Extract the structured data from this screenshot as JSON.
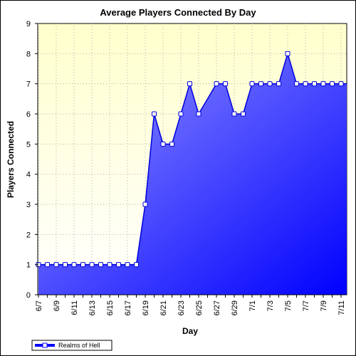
{
  "chart_data": {
    "type": "area",
    "title": "Average Players Connected By Day",
    "xlabel": "Day",
    "ylabel": "Players Connected",
    "ylim": [
      0,
      9
    ],
    "yticks": [
      0,
      1,
      2,
      3,
      4,
      5,
      6,
      7,
      8,
      9
    ],
    "grid": true,
    "legend_position": "bottom-left",
    "tick_labels_every": 2,
    "categories": [
      "6/7",
      "6/8",
      "6/9",
      "6/10",
      "6/11",
      "6/12",
      "6/13",
      "6/14",
      "6/15",
      "6/16",
      "6/17",
      "6/18",
      "6/19",
      "6/20",
      "6/21",
      "6/22",
      "6/23",
      "6/24",
      "6/25",
      "6/26",
      "6/27",
      "6/28",
      "6/29",
      "6/30",
      "7/1",
      "7/2",
      "7/3",
      "7/4",
      "7/5",
      "7/6",
      "7/7",
      "7/8",
      "7/9",
      "7/10",
      "7/11"
    ],
    "series": [
      {
        "name": "Realms of Hell",
        "values": [
          1,
          1,
          1,
          1,
          1,
          1,
          1,
          1,
          1,
          1,
          1,
          1,
          3,
          6,
          5,
          5,
          6,
          7,
          6,
          null,
          7,
          7,
          6,
          6,
          7,
          7,
          7,
          7,
          8,
          7,
          7,
          7,
          7,
          7,
          7
        ],
        "color": "#0000ff"
      }
    ],
    "colors": {
      "plot_background_top": "#ffffcc",
      "plot_background_bottom": "#ffffff",
      "fill_top": "#9999ff",
      "fill_bottom": "#0000ff",
      "line": "#0000dd",
      "marker_fill": "#ffffff",
      "grid": "#b0b0b0"
    }
  }
}
